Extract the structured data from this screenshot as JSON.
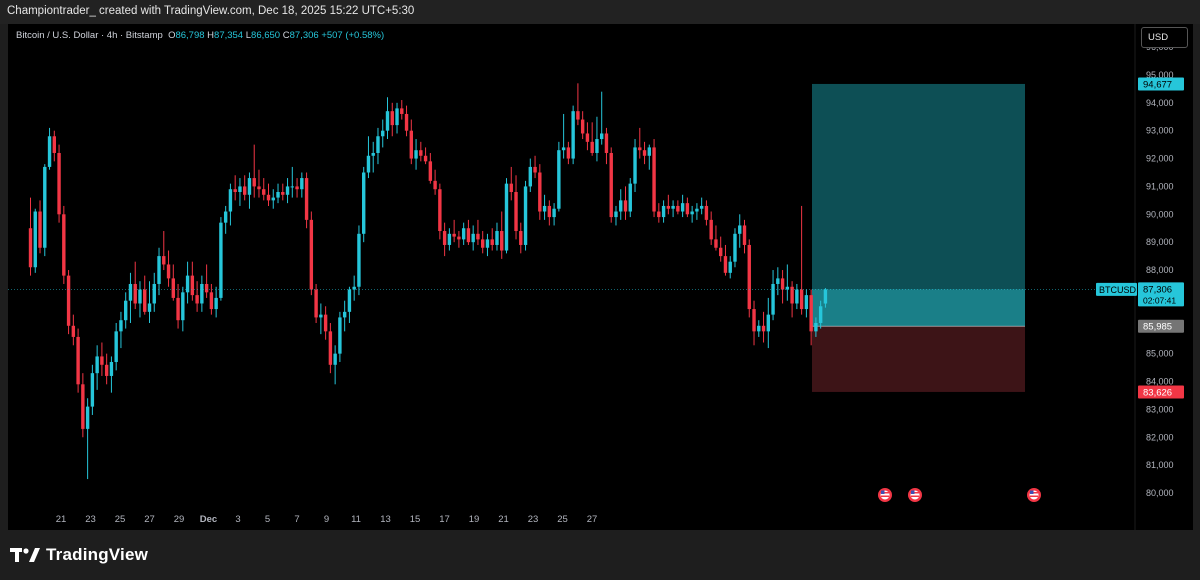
{
  "header": {
    "watermark": "Championtrader_ created with TradingView.com, Dec 18, 2025 15:22 UTC+5:30"
  },
  "legend": {
    "symbol": "Bitcoin / U.S. Dollar · 4h · Bitstamp",
    "o_label": "O",
    "o": "86,798",
    "h_label": "H",
    "h": "87,354",
    "l_label": "L",
    "l": "86,650",
    "c_label": "C",
    "c": "87,306",
    "change": "+507 (+0.58%)"
  },
  "currency_button": "USD",
  "brand": {
    "name": "TradingView"
  },
  "colors": {
    "up": "#26c6da",
    "down": "#f23645",
    "profit_zone": "#0d4f55",
    "loss_zone": "#3d1417"
  },
  "chart_data": {
    "type": "candlestick",
    "y_axis": {
      "range": [
        79600,
        96200
      ],
      "ticks": [
        "80,000",
        "81,000",
        "82,000",
        "83,000",
        "84,000",
        "85,000",
        "86,000",
        "87,000",
        "88,000",
        "89,000",
        "90,000",
        "91,000",
        "92,000",
        "93,000",
        "94,000",
        "95,000",
        "96,000"
      ]
    },
    "x_axis": {
      "ticks": [
        "21",
        "23",
        "25",
        "27",
        "29",
        "Dec",
        "3",
        "5",
        "7",
        "9",
        "11",
        "13",
        "15",
        "17",
        "19",
        "21",
        "23",
        "25",
        "27"
      ]
    },
    "ohlc": [
      [
        89500,
        90600,
        87800,
        88100
      ],
      [
        88100,
        90200,
        87900,
        90100
      ],
      [
        90100,
        90500,
        88600,
        88800
      ],
      [
        88800,
        91800,
        88500,
        91700
      ],
      [
        91700,
        93100,
        91600,
        92800
      ],
      [
        92800,
        93000,
        91900,
        92200
      ],
      [
        92200,
        92500,
        89700,
        90000
      ],
      [
        90000,
        90300,
        87500,
        87800
      ],
      [
        87800,
        88000,
        85700,
        86000
      ],
      [
        86000,
        86400,
        85300,
        85600
      ],
      [
        85600,
        85900,
        83600,
        83900
      ],
      [
        83900,
        84300,
        82000,
        82300
      ],
      [
        82300,
        83400,
        80500,
        83100
      ],
      [
        83100,
        84600,
        82800,
        84300
      ],
      [
        84300,
        85300,
        83700,
        84900
      ],
      [
        84900,
        85400,
        84200,
        84600
      ],
      [
        84600,
        85000,
        83900,
        84200
      ],
      [
        84200,
        84900,
        83600,
        84700
      ],
      [
        84700,
        86100,
        84400,
        85800
      ],
      [
        85800,
        86500,
        85200,
        86200
      ],
      [
        86200,
        87200,
        85900,
        86900
      ],
      [
        86900,
        87900,
        86100,
        87500
      ],
      [
        87500,
        88300,
        86600,
        86800
      ],
      [
        86800,
        87600,
        86300,
        87300
      ],
      [
        87300,
        87800,
        86400,
        86500
      ],
      [
        86500,
        87600,
        86100,
        86800
      ],
      [
        86800,
        87900,
        86500,
        87500
      ],
      [
        87500,
        88800,
        87100,
        88500
      ],
      [
        88500,
        89400,
        88000,
        88200
      ],
      [
        88200,
        88700,
        87400,
        87700
      ],
      [
        87700,
        88200,
        86900,
        87000
      ],
      [
        87000,
        87500,
        85900,
        86200
      ],
      [
        86200,
        87400,
        85800,
        87200
      ],
      [
        87200,
        88300,
        86800,
        87800
      ],
      [
        87800,
        88300,
        86900,
        87100
      ],
      [
        87100,
        87600,
        86500,
        86800
      ],
      [
        86800,
        87800,
        86500,
        87500
      ],
      [
        87500,
        88200,
        87000,
        87200
      ],
      [
        87200,
        87500,
        86400,
        86600
      ],
      [
        86600,
        87400,
        86300,
        87000
      ],
      [
        87000,
        89900,
        86900,
        89700
      ],
      [
        89700,
        90300,
        89300,
        90100
      ],
      [
        90100,
        91100,
        89600,
        90900
      ],
      [
        90900,
        91400,
        90500,
        90800
      ],
      [
        90800,
        91300,
        90300,
        91000
      ],
      [
        91000,
        91400,
        90500,
        90700
      ],
      [
        90700,
        91500,
        90200,
        91300
      ],
      [
        91300,
        92500,
        90600,
        91000
      ],
      [
        91000,
        91600,
        90600,
        90900
      ],
      [
        90900,
        91300,
        90500,
        90700
      ],
      [
        90700,
        91100,
        90300,
        90500
      ],
      [
        90500,
        90900,
        90200,
        90600
      ],
      [
        90600,
        91100,
        90400,
        90800
      ],
      [
        90800,
        91100,
        90500,
        90700
      ],
      [
        90700,
        91300,
        90400,
        91000
      ],
      [
        91000,
        91700,
        90600,
        91000
      ],
      [
        91000,
        91300,
        90600,
        90900
      ],
      [
        90900,
        91500,
        90600,
        91300
      ],
      [
        91300,
        91500,
        89500,
        89800
      ],
      [
        89800,
        90100,
        87100,
        87300
      ],
      [
        87300,
        87500,
        86100,
        86300
      ],
      [
        86300,
        86800,
        85700,
        86400
      ],
      [
        86400,
        86700,
        85500,
        85800
      ],
      [
        85800,
        86100,
        84300,
        84600
      ],
      [
        84600,
        85300,
        83900,
        85000
      ],
      [
        85000,
        86500,
        84700,
        86300
      ],
      [
        86300,
        86900,
        85800,
        86500
      ],
      [
        86500,
        87400,
        86100,
        87300
      ],
      [
        87300,
        87800,
        86900,
        87400
      ],
      [
        87400,
        89600,
        87100,
        89300
      ],
      [
        89300,
        91700,
        89000,
        91500
      ],
      [
        91500,
        92800,
        91300,
        92100
      ],
      [
        92100,
        92600,
        91500,
        92200
      ],
      [
        92200,
        93100,
        91800,
        92800
      ],
      [
        92800,
        93400,
        92400,
        93000
      ],
      [
        93000,
        94200,
        92700,
        93700
      ],
      [
        93700,
        94000,
        92800,
        93200
      ],
      [
        93200,
        94000,
        92900,
        93800
      ],
      [
        93800,
        94100,
        93400,
        93600
      ],
      [
        93600,
        93900,
        92800,
        93000
      ],
      [
        93000,
        93400,
        91800,
        92000
      ],
      [
        92000,
        92700,
        91600,
        92300
      ],
      [
        92300,
        92600,
        91900,
        92100
      ],
      [
        92100,
        92400,
        91800,
        91900
      ],
      [
        91900,
        92200,
        91100,
        91200
      ],
      [
        91200,
        91600,
        90700,
        90900
      ],
      [
        90900,
        91100,
        89100,
        89400
      ],
      [
        89400,
        89700,
        88500,
        88900
      ],
      [
        88900,
        89500,
        88700,
        89300
      ],
      [
        89300,
        89800,
        89000,
        89200
      ],
      [
        89200,
        89400,
        88800,
        89100
      ],
      [
        89100,
        89700,
        88900,
        89500
      ],
      [
        89500,
        89800,
        88900,
        89000
      ],
      [
        89000,
        89600,
        88700,
        89300
      ],
      [
        89300,
        89800,
        88900,
        89100
      ],
      [
        89100,
        89400,
        88600,
        88800
      ],
      [
        88800,
        89300,
        88500,
        89100
      ],
      [
        89100,
        89500,
        88700,
        88900
      ],
      [
        88900,
        89700,
        88700,
        89400
      ],
      [
        89400,
        90100,
        88400,
        88700
      ],
      [
        88700,
        91300,
        88600,
        91100
      ],
      [
        91100,
        91700,
        90500,
        90800
      ],
      [
        90800,
        91400,
        89100,
        89400
      ],
      [
        89400,
        89700,
        88600,
        88900
      ],
      [
        88900,
        91200,
        88700,
        91000
      ],
      [
        91000,
        92000,
        90800,
        91700
      ],
      [
        91700,
        92100,
        91300,
        91500
      ],
      [
        91500,
        91800,
        89800,
        90100
      ],
      [
        90100,
        90700,
        89800,
        90300
      ],
      [
        90300,
        90500,
        89600,
        89900
      ],
      [
        89900,
        90400,
        89600,
        90200
      ],
      [
        90200,
        92600,
        90100,
        92300
      ],
      [
        92300,
        93600,
        92000,
        92400
      ],
      [
        92400,
        92600,
        91800,
        92000
      ],
      [
        92000,
        93900,
        91800,
        93700
      ],
      [
        93700,
        94700,
        93200,
        93400
      ],
      [
        93400,
        93700,
        92700,
        92900
      ],
      [
        92900,
        93300,
        92300,
        92600
      ],
      [
        92600,
        93300,
        92100,
        92200
      ],
      [
        92200,
        93500,
        91900,
        92700
      ],
      [
        92700,
        94400,
        92500,
        92900
      ],
      [
        92900,
        93100,
        91800,
        92200
      ],
      [
        92200,
        92400,
        89700,
        89900
      ],
      [
        89900,
        90300,
        89600,
        90100
      ],
      [
        90100,
        90900,
        89800,
        90500
      ],
      [
        90500,
        91000,
        89800,
        90100
      ],
      [
        90100,
        91300,
        89900,
        91100
      ],
      [
        91100,
        92700,
        90800,
        92400
      ],
      [
        92400,
        93100,
        92000,
        92300
      ],
      [
        92300,
        92600,
        91800,
        92100
      ],
      [
        92100,
        92500,
        91600,
        92400
      ],
      [
        92400,
        92700,
        89900,
        90100
      ],
      [
        90100,
        90400,
        89700,
        89900
      ],
      [
        89900,
        90500,
        89700,
        90300
      ],
      [
        90300,
        90700,
        90000,
        90200
      ],
      [
        90200,
        90500,
        89900,
        90300
      ],
      [
        90300,
        90500,
        90000,
        90100
      ],
      [
        90100,
        90700,
        89900,
        90400
      ],
      [
        90400,
        90600,
        89900,
        90000
      ],
      [
        90000,
        90300,
        89700,
        90100
      ],
      [
        90100,
        90400,
        89800,
        90200
      ],
      [
        90200,
        90600,
        90000,
        90300
      ],
      [
        90300,
        90500,
        89600,
        89800
      ],
      [
        89800,
        90100,
        88900,
        89100
      ],
      [
        89100,
        89600,
        88700,
        88800
      ],
      [
        88800,
        89200,
        88300,
        88500
      ],
      [
        88500,
        88900,
        87800,
        87900
      ],
      [
        87900,
        88500,
        87700,
        88300
      ],
      [
        88300,
        89500,
        88100,
        89300
      ],
      [
        89300,
        90000,
        88800,
        89600
      ],
      [
        89600,
        89800,
        88600,
        88900
      ],
      [
        88900,
        89100,
        86300,
        86600
      ],
      [
        86600,
        86900,
        85300,
        85800
      ],
      [
        85800,
        86200,
        85600,
        86000
      ],
      [
        86000,
        86500,
        85400,
        85800
      ],
      [
        85800,
        87000,
        85200,
        86400
      ],
      [
        86400,
        88000,
        86200,
        87500
      ],
      [
        87500,
        88100,
        87100,
        87700
      ],
      [
        87700,
        88000,
        86800,
        87300
      ],
      [
        87300,
        88200,
        86900,
        87400
      ],
      [
        87400,
        87600,
        86300,
        86800
      ],
      [
        86800,
        87500,
        86600,
        87300
      ],
      [
        87300,
        90300,
        86400,
        86600
      ],
      [
        86600,
        87300,
        86300,
        87100
      ],
      [
        87100,
        87300,
        85300,
        85800
      ],
      [
        85800,
        86300,
        85600,
        86100
      ],
      [
        86100,
        86900,
        85900,
        86700
      ],
      [
        86798,
        87354,
        86650,
        87306
      ]
    ],
    "current_price": {
      "symbol": "BTCUSD",
      "price": "87,306",
      "countdown": "02:07:41"
    },
    "position": {
      "type": "long",
      "target": "94,677",
      "entry": "85,985",
      "stop": "83,626",
      "target_value": 94677,
      "entry_value": 85985,
      "stop_value": 83626
    },
    "events": [
      {
        "label": "US"
      },
      {
        "label": "US"
      },
      {
        "label": "US"
      }
    ]
  }
}
